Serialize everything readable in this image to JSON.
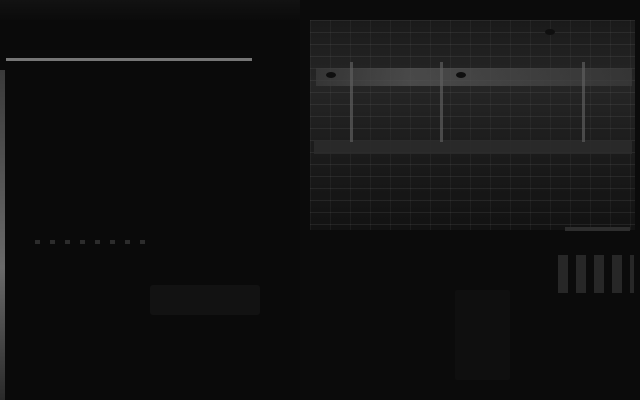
{
  "screen": {
    "brightness": "very-dark"
  },
  "panels": {
    "left": {
      "header_line_level": 0.85
    },
    "right": {
      "grid_visible": true,
      "highlight_row_visible": true
    }
  },
  "colors": {
    "background": "#080808",
    "panel": "#0a0a0a",
    "grid": "#1c1c1c",
    "highlight": "#555555",
    "edge": "#6a6a6a"
  },
  "icons": [
    "top-right-dot-icon",
    "grid-marker-icon"
  ]
}
